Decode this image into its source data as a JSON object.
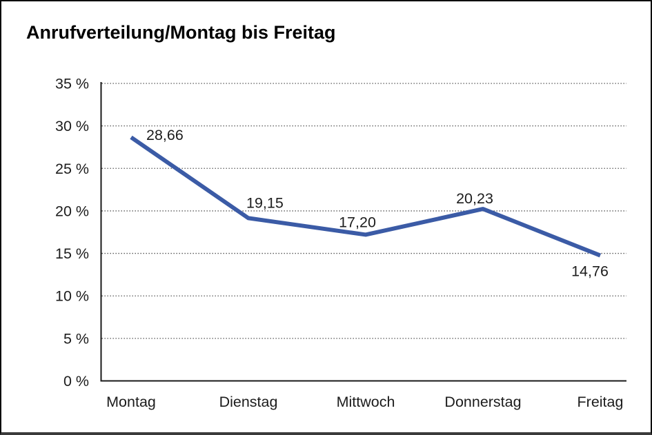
{
  "window": {
    "background": "#ffffff",
    "border_color": "#0a0a0a"
  },
  "chart_data": {
    "type": "line",
    "title": "Anrufverteilung/Montag bis Freitag",
    "categories": [
      "Montag",
      "Dienstag",
      "Mittwoch",
      "Donnerstag",
      "Freitag"
    ],
    "values": [
      28.66,
      19.15,
      17.2,
      20.23,
      14.76
    ],
    "value_labels": [
      "28,66",
      "19,15",
      "17,20",
      "20,23",
      "14,76"
    ],
    "unit": "%",
    "ylim": [
      0,
      35
    ],
    "ytick_values": [
      35,
      30,
      25,
      20,
      15,
      10,
      5,
      0
    ],
    "ytick_labels": [
      "35 %",
      "30 %",
      "25 %",
      "20 %",
      "15 %",
      "10 %",
      "5 %",
      "0 %"
    ],
    "xlabel": "",
    "ylabel": "",
    "grid": "horizontal dotted lines at each 5% tick",
    "legend": "none",
    "line_color": "#3B5BA6",
    "axis_color": "#1a1a1a",
    "grid_color": "#4a4a4a",
    "label_color": "#1c1c1c"
  }
}
